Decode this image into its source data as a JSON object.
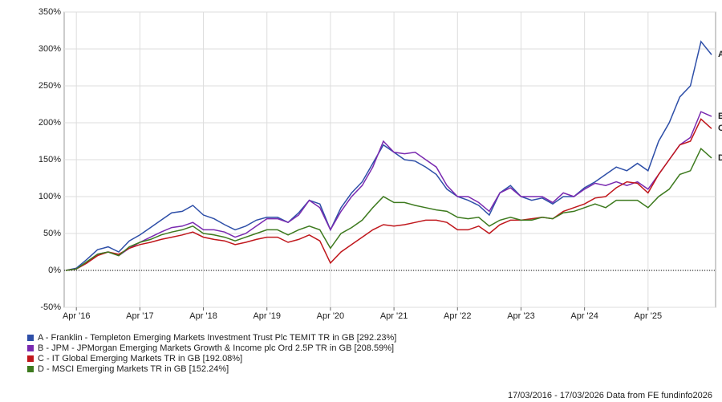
{
  "chart_data": {
    "type": "line",
    "categories": [
      null,
      "Apr '16",
      null,
      null,
      null,
      null,
      null,
      "Apr '17",
      null,
      null,
      null,
      null,
      null,
      "Apr '18",
      null,
      null,
      null,
      null,
      null,
      "Apr '19",
      null,
      null,
      null,
      null,
      null,
      "Apr '20",
      null,
      null,
      null,
      null,
      null,
      "Apr '21",
      null,
      null,
      null,
      null,
      null,
      "Apr '22",
      null,
      null,
      null,
      null,
      null,
      "Apr '23",
      null,
      null,
      null,
      null,
      null,
      "Apr '24",
      null,
      null,
      null,
      null,
      null,
      "Apr '25",
      null,
      null,
      null,
      null,
      null,
      null
    ],
    "series": [
      {
        "name": "A - Franklin - Templeton Emerging Markets Investment Trust Plc TEMIT TR in GB [292.23%]",
        "end_label": "A",
        "color": "#2e4fa8",
        "values": [
          0,
          3,
          15,
          28,
          32,
          25,
          40,
          48,
          58,
          68,
          78,
          80,
          88,
          75,
          70,
          62,
          55,
          60,
          68,
          72,
          72,
          65,
          78,
          95,
          90,
          55,
          85,
          105,
          120,
          145,
          170,
          160,
          150,
          148,
          140,
          130,
          110,
          100,
          95,
          88,
          75,
          105,
          115,
          100,
          95,
          98,
          90,
          100,
          100,
          112,
          120,
          130,
          140,
          135,
          145,
          135,
          175,
          200,
          235,
          250,
          310,
          292.23
        ]
      },
      {
        "name": "B - JPM - JPMorgan Emerging Markets Growth & Income plc Ord 2.5P TR in GB [208.59%]",
        "end_label": "B",
        "color": "#7a2ab0",
        "values": [
          0,
          2,
          10,
          22,
          25,
          20,
          30,
          38,
          45,
          52,
          58,
          60,
          65,
          55,
          55,
          52,
          45,
          50,
          60,
          70,
          70,
          65,
          75,
          95,
          85,
          55,
          80,
          100,
          115,
          140,
          175,
          160,
          158,
          160,
          150,
          140,
          115,
          100,
          100,
          92,
          80,
          105,
          112,
          100,
          100,
          100,
          92,
          105,
          100,
          110,
          118,
          115,
          120,
          115,
          120,
          110,
          130,
          150,
          170,
          180,
          215,
          208.59
        ]
      },
      {
        "name": "C - IT Global Emerging Markets TR in GB [192.08%]",
        "end_label": "C",
        "color": "#c0171c",
        "values": [
          0,
          2,
          10,
          20,
          25,
          22,
          30,
          35,
          38,
          42,
          45,
          48,
          52,
          45,
          42,
          40,
          35,
          38,
          42,
          45,
          45,
          38,
          42,
          48,
          40,
          10,
          25,
          35,
          45,
          55,
          62,
          60,
          62,
          65,
          68,
          68,
          65,
          55,
          55,
          60,
          50,
          62,
          68,
          68,
          70,
          72,
          70,
          80,
          85,
          90,
          98,
          100,
          112,
          120,
          118,
          105,
          130,
          150,
          170,
          175,
          205,
          192.08
        ]
      },
      {
        "name": "D - MSCI Emerging Markets TR in GB [152.24%]",
        "end_label": "D",
        "color": "#3d7a1e",
        "values": [
          0,
          2,
          12,
          22,
          25,
          20,
          32,
          38,
          42,
          48,
          52,
          55,
          60,
          50,
          48,
          45,
          40,
          45,
          50,
          55,
          55,
          48,
          55,
          60,
          55,
          30,
          50,
          58,
          68,
          85,
          100,
          92,
          92,
          88,
          85,
          82,
          80,
          72,
          70,
          72,
          60,
          68,
          72,
          68,
          68,
          72,
          70,
          78,
          80,
          85,
          90,
          85,
          95,
          95,
          95,
          85,
          100,
          110,
          130,
          135,
          165,
          152.24
        ]
      }
    ],
    "ylim": [
      -50,
      350
    ],
    "yticks": [
      {
        "value": -50,
        "label": "-50%"
      },
      {
        "value": 0,
        "label": "0%"
      },
      {
        "value": 50,
        "label": "50%"
      },
      {
        "value": 100,
        "label": "100%"
      },
      {
        "value": 150,
        "label": "150%"
      },
      {
        "value": 200,
        "label": "200%"
      },
      {
        "value": 250,
        "label": "250%"
      },
      {
        "value": 300,
        "label": "300%"
      },
      {
        "value": 350,
        "label": "350%"
      }
    ],
    "grid": true,
    "footer": "17/03/2016 - 17/03/2026 Data from FE fundinfo2026"
  }
}
